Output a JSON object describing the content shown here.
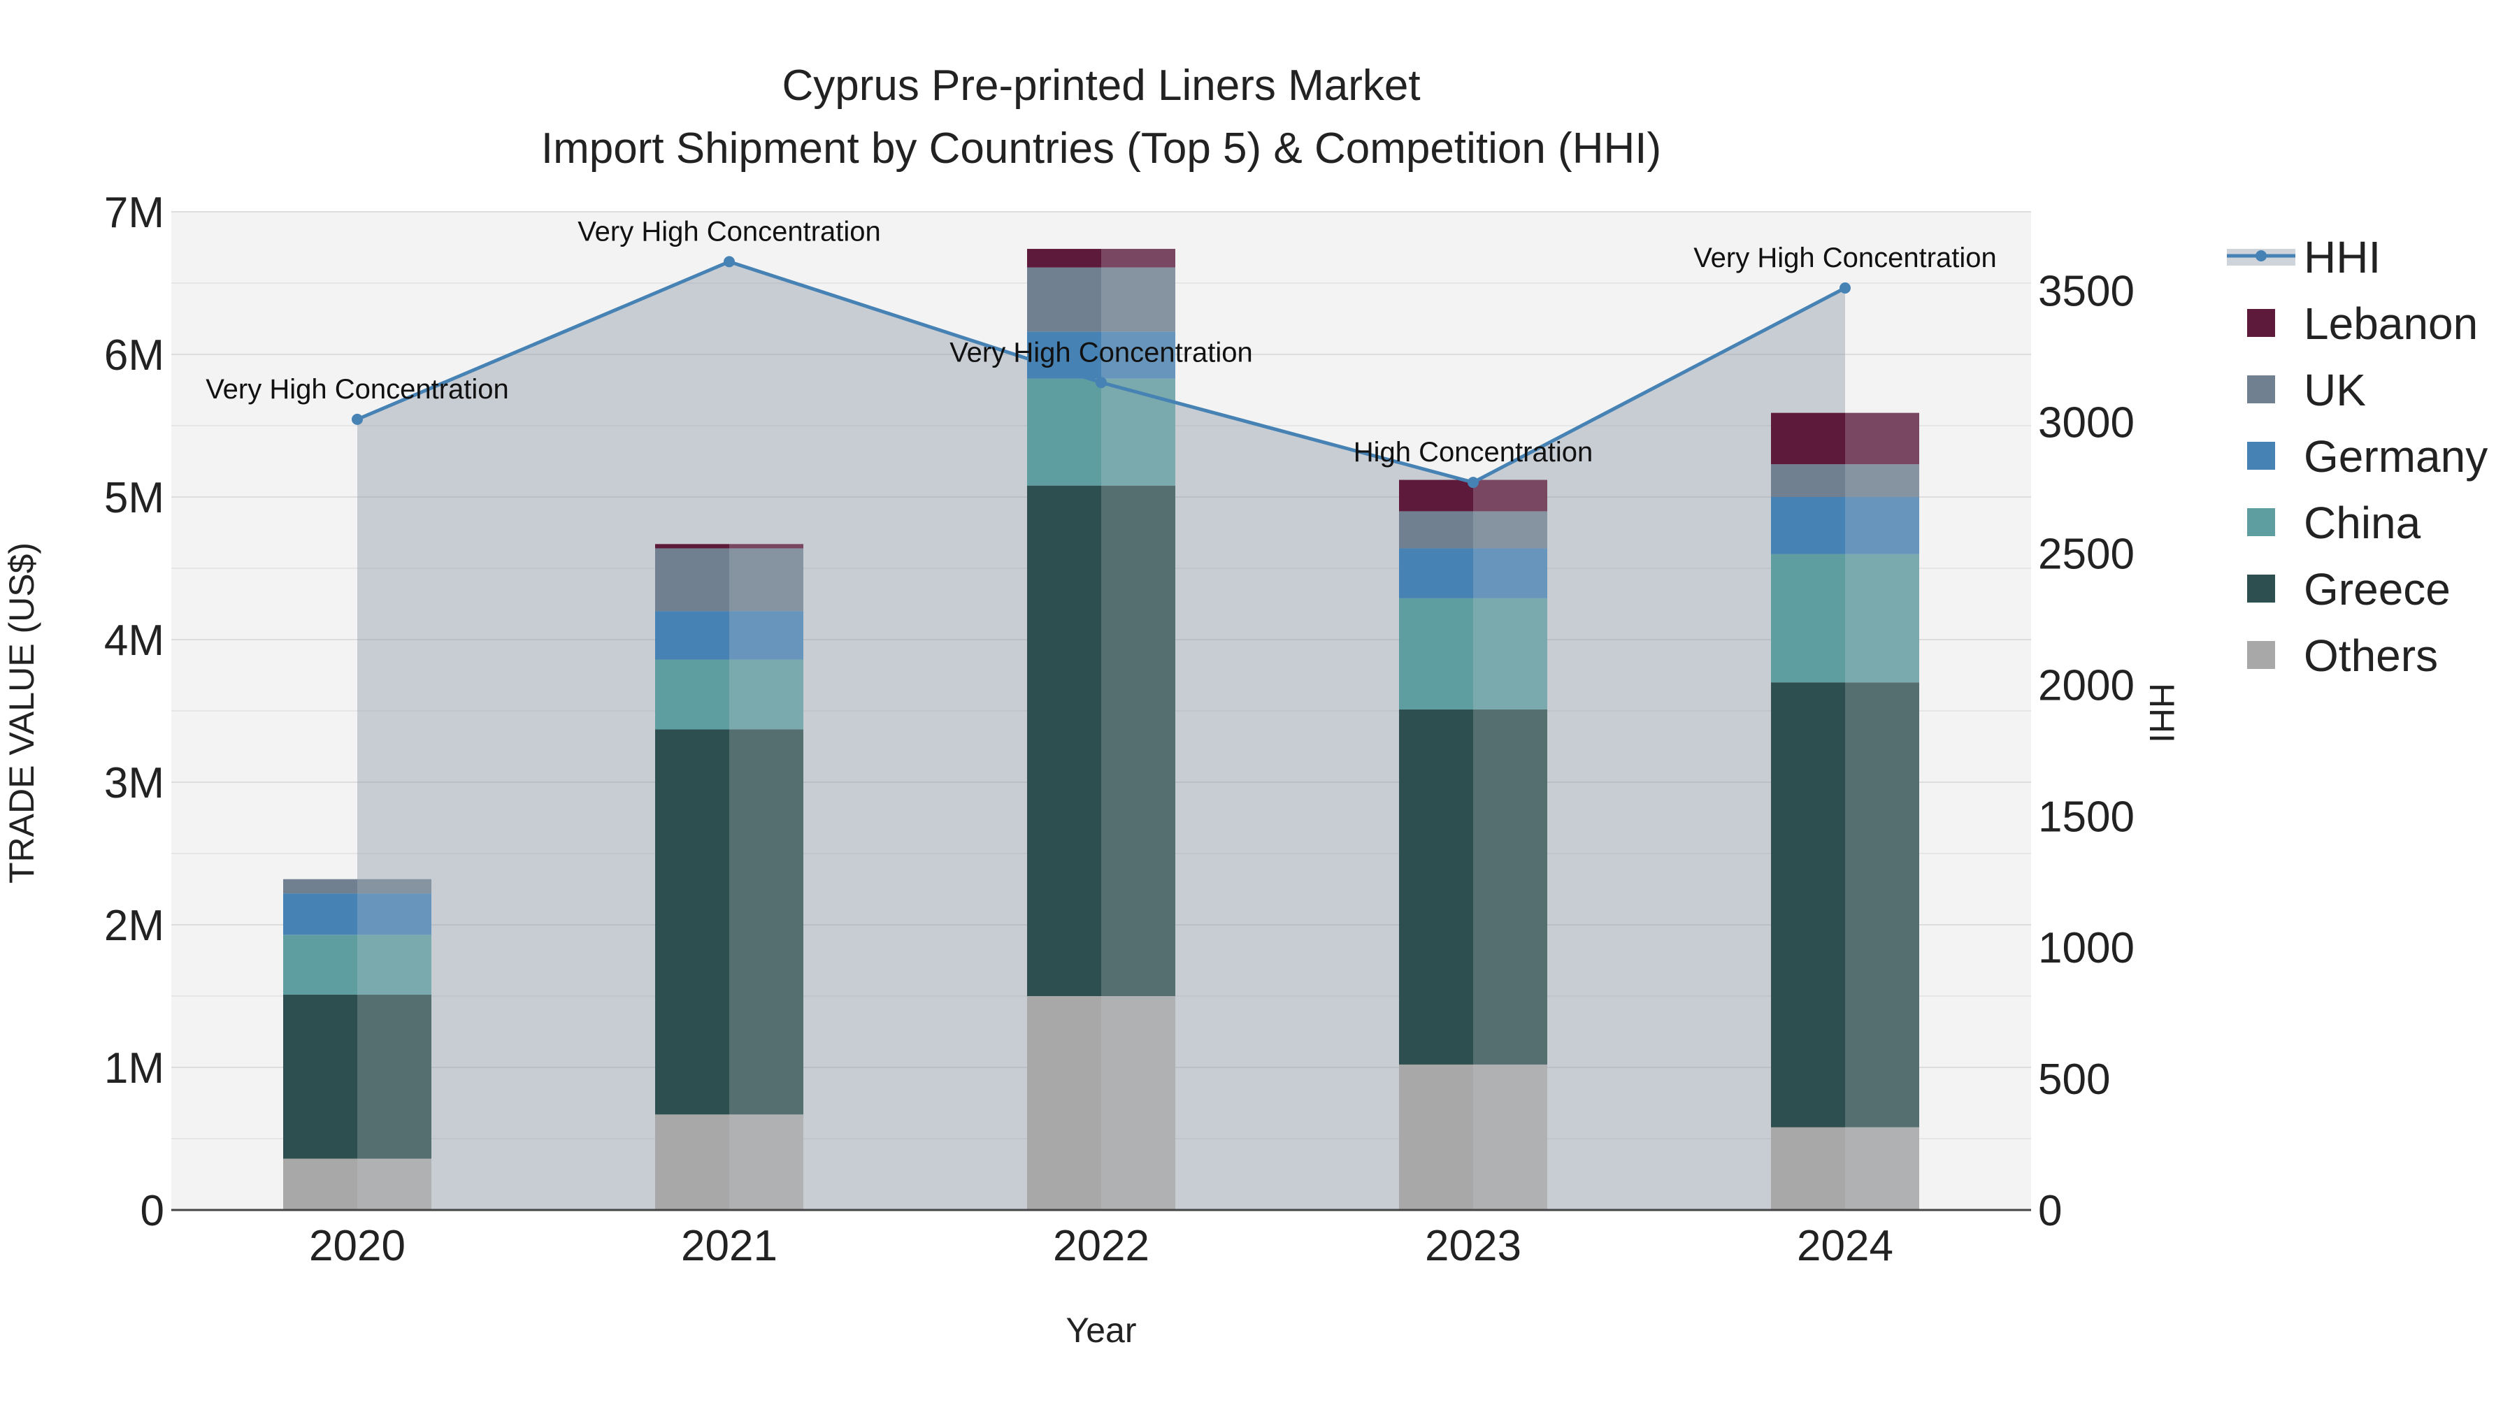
{
  "chart_data": {
    "type": "bar",
    "stacked": true,
    "title": "Cyprus Pre-printed Liners Market",
    "subtitle": "Import Shipment by Countries (Top 5) & Competition (HHI)",
    "xlabel": "Year",
    "ylabel": "TRADE VALUE (US$)",
    "y2label": "HHI",
    "categories": [
      "2020",
      "2021",
      "2022",
      "2023",
      "2024"
    ],
    "ylim": [
      0,
      7000000
    ],
    "y2lim": [
      0,
      3800
    ],
    "y_ticks": [
      {
        "value": 0,
        "label": "0"
      },
      {
        "value": 1000000,
        "label": "1M"
      },
      {
        "value": 2000000,
        "label": "2M"
      },
      {
        "value": 3000000,
        "label": "3M"
      },
      {
        "value": 4000000,
        "label": "4M"
      },
      {
        "value": 5000000,
        "label": "5M"
      },
      {
        "value": 6000000,
        "label": "6M"
      },
      {
        "value": 7000000,
        "label": "7M"
      }
    ],
    "y2_ticks": [
      {
        "value": 0,
        "label": "0"
      },
      {
        "value": 500,
        "label": "500"
      },
      {
        "value": 1000,
        "label": "1000"
      },
      {
        "value": 1500,
        "label": "1500"
      },
      {
        "value": 2000,
        "label": "2000"
      },
      {
        "value": 2500,
        "label": "2500"
      },
      {
        "value": 3000,
        "label": "3000"
      },
      {
        "value": 3500,
        "label": "3500"
      }
    ],
    "series": [
      {
        "name": "Others",
        "color": "#a8a8a8",
        "values": [
          360000,
          670000,
          1500000,
          1020000,
          580000
        ]
      },
      {
        "name": "Greece",
        "color": "#2e4f4f",
        "values": [
          1150000,
          2700000,
          3580000,
          2490000,
          3120000
        ]
      },
      {
        "name": "China",
        "color": "#5f9ea0",
        "values": [
          420000,
          490000,
          750000,
          780000,
          900000
        ]
      },
      {
        "name": "Germany",
        "color": "#4682b4",
        "values": [
          290000,
          340000,
          330000,
          350000,
          400000
        ]
      },
      {
        "name": "UK",
        "color": "#708090",
        "values": [
          100000,
          440000,
          450000,
          260000,
          230000
        ]
      },
      {
        "name": "Lebanon",
        "color": "#5e1a3a",
        "values": [
          0,
          30000,
          130000,
          220000,
          360000
        ]
      }
    ],
    "hhi": {
      "name": "HHI",
      "color": "#4682b4",
      "values": [
        3010,
        3610,
        3150,
        2770,
        3510
      ],
      "labels": [
        "Very High Concentration",
        "Very High Concentration",
        "Very High Concentration",
        "High Concentration",
        "Very High Concentration"
      ]
    },
    "legend": {
      "position": "right",
      "order": [
        "HHI",
        "Lebanon",
        "UK",
        "Germany",
        "China",
        "Greece",
        "Others"
      ]
    },
    "grid": true
  }
}
